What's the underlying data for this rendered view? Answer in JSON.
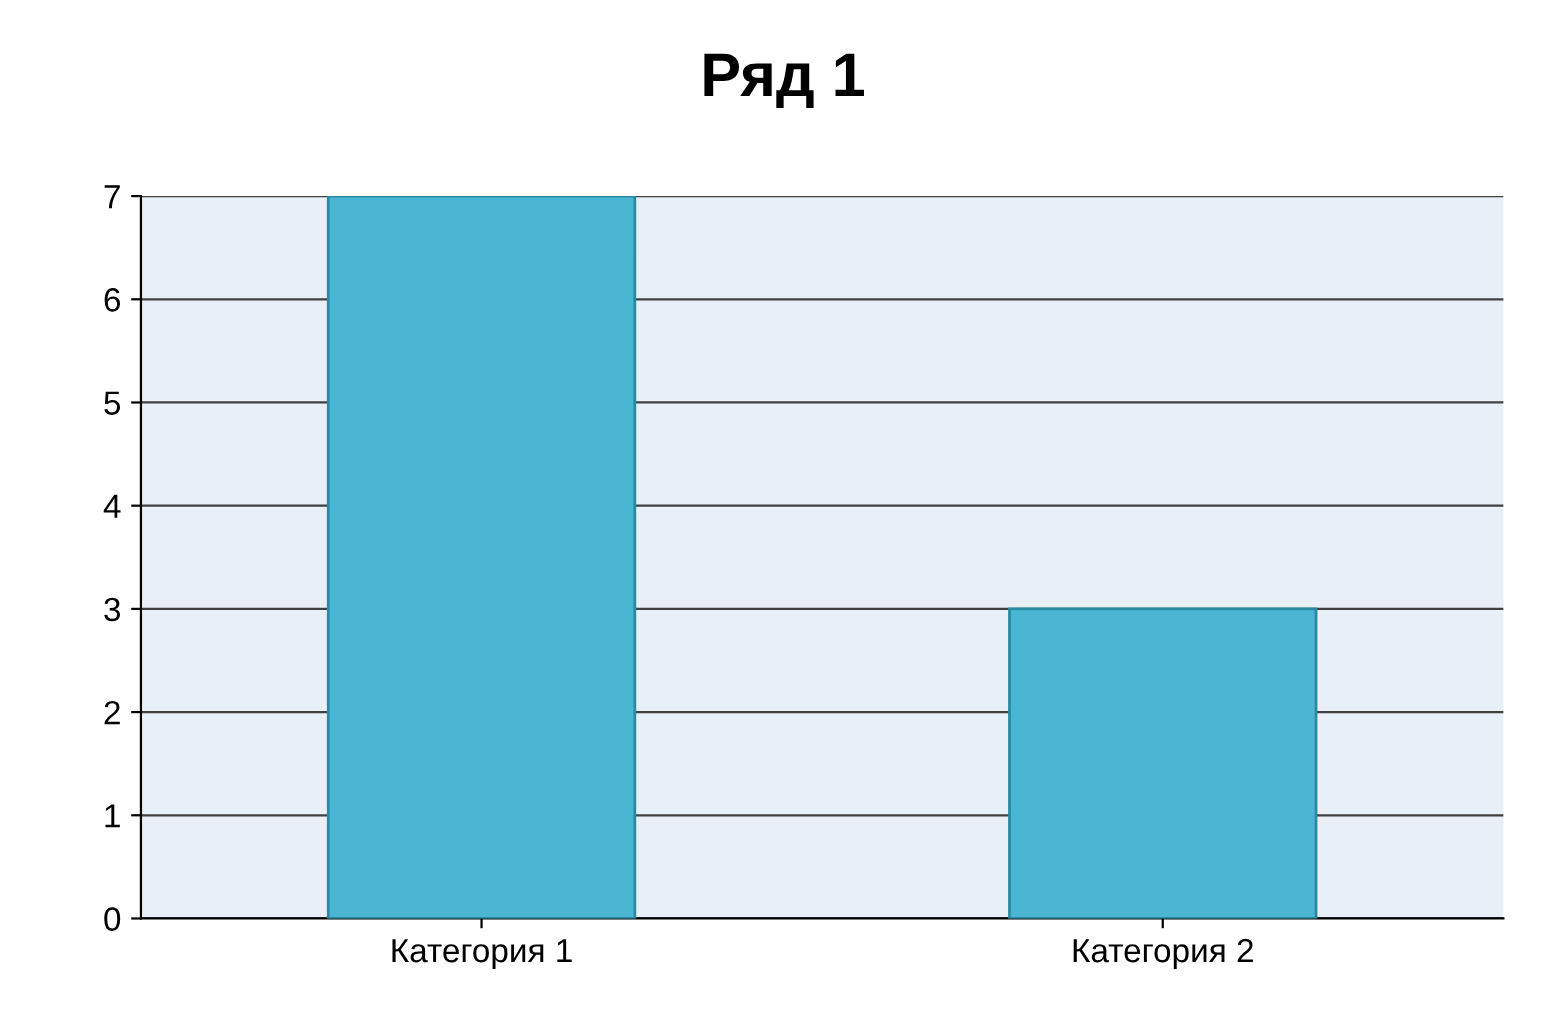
{
  "chart_data": {
    "type": "bar",
    "title": "Ряд 1",
    "categories": [
      "Категория 1",
      "Категория 2"
    ],
    "series": [
      {
        "color": "#4bb6d3",
        "values": [
          7,
          3
        ]
      }
    ],
    "ylim": [
      0,
      7
    ],
    "yticks": [
      0,
      1,
      2,
      3,
      4,
      5,
      6,
      7
    ],
    "grid": "y"
  }
}
